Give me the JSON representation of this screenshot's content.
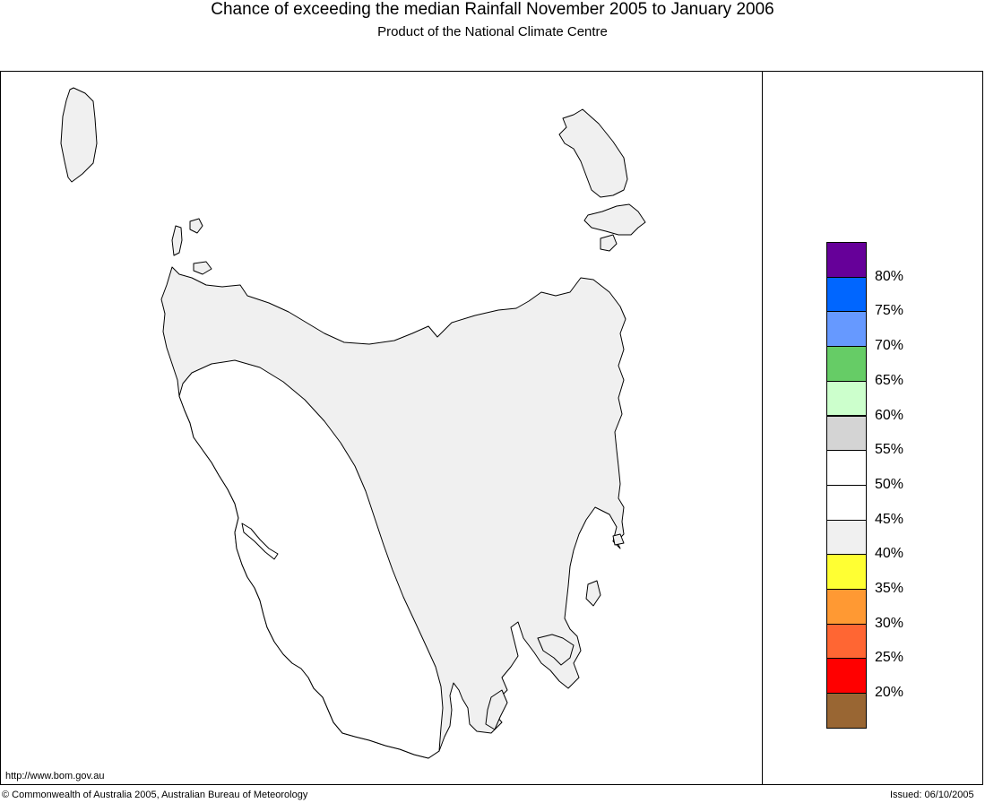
{
  "header": {
    "title": "Chance of exceeding the median Rainfall November 2005 to January 2006",
    "subtitle": "Product of the National Climate Centre"
  },
  "map": {
    "land_fill": "#f0f0f0",
    "outline_color": "#000000"
  },
  "legend": {
    "swatches": [
      {
        "color": "#660099"
      },
      {
        "color": "#0066ff"
      },
      {
        "color": "#6699ff"
      },
      {
        "color": "#66cc66"
      },
      {
        "color": "#ccffcc"
      },
      {
        "color": "#d4d4d4"
      },
      {
        "color": "#ffffff"
      },
      {
        "color": "#ffffff"
      },
      {
        "color": "#f0f0f0"
      },
      {
        "color": "#ffff33"
      },
      {
        "color": "#ff9933"
      },
      {
        "color": "#ff6633"
      },
      {
        "color": "#ff0000"
      },
      {
        "color": "#996633"
      }
    ],
    "labels": [
      "80%",
      "75%",
      "70%",
      "65%",
      "60%",
      "55%",
      "50%",
      "45%",
      "40%",
      "35%",
      "30%",
      "25%",
      "20%"
    ]
  },
  "footer": {
    "url": "http://www.bom.gov.au",
    "copyright": "© Commonwealth of Australia 2005, Australian Bureau of Meteorology",
    "issued": "Issued: 06/10/2005"
  }
}
